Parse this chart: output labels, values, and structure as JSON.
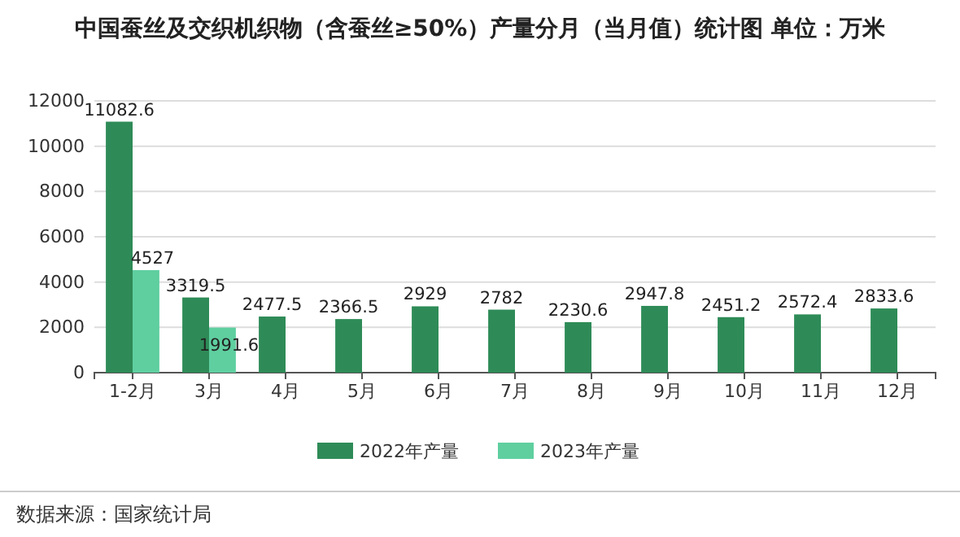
{
  "chart_data": {
    "type": "bar",
    "title": "中国蚕丝及交织机织物（含蚕丝≥50%）产量分月（当月值）统计图 单位：万米",
    "categories": [
      "1-2月",
      "3月",
      "4月",
      "5月",
      "6月",
      "7月",
      "8月",
      "9月",
      "10月",
      "11月",
      "12月"
    ],
    "series": [
      {
        "name": "2022年产量",
        "color": "#2e8b57",
        "values": [
          11082.6,
          3319.5,
          2477.5,
          2366.5,
          2929,
          2782,
          2230.6,
          2947.8,
          2451.2,
          2572.4,
          2833.6
        ]
      },
      {
        "name": "2023年产量",
        "color": "#5fcfa0",
        "values": [
          4527,
          1991.6,
          null,
          null,
          null,
          null,
          null,
          null,
          null,
          null,
          null
        ]
      }
    ],
    "ylim": [
      0,
      12000
    ],
    "yticks": [
      0,
      2000,
      4000,
      6000,
      8000,
      10000,
      12000
    ],
    "grid": "y",
    "legend": "bottom",
    "data_labels": true,
    "annotations": [
      "数据来源：国家统计局"
    ]
  }
}
